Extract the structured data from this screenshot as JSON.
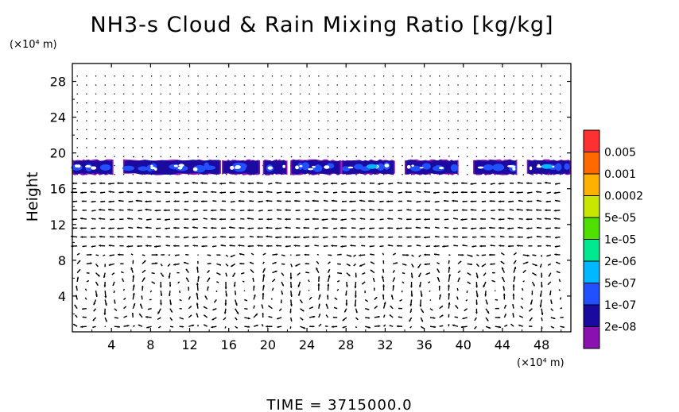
{
  "chart_data": {
    "type": "heatmap",
    "title": "NH3-s Cloud & Rain Mixing Ratio [kg/kg]",
    "ylabel": "Height",
    "x_unit": "(×10⁴ m)",
    "y_unit": "(×10⁴ m)",
    "xlim": [
      0,
      51
    ],
    "ylim": [
      0,
      30
    ],
    "x_ticks": [
      4,
      8,
      12,
      16,
      20,
      24,
      28,
      32,
      36,
      40,
      44,
      48
    ],
    "y_ticks": [
      4,
      8,
      12,
      16,
      20,
      24,
      28
    ],
    "colorbar": {
      "labels": [
        "0.005",
        "0.001",
        "0.0002",
        "5e-05",
        "1e-05",
        "2e-06",
        "5e-07",
        "1e-07",
        "2e-08"
      ],
      "colors": [
        "#ff3030",
        "#ff6a00",
        "#ffb000",
        "#c8e600",
        "#50e000",
        "#00e890",
        "#00b8ff",
        "#2050ff",
        "#1a0aa0",
        "#8a10b0"
      ]
    },
    "cloud_layer": {
      "z_bottom": 17.6,
      "z_top": 19.2,
      "segments": [
        {
          "x": [
            0,
            4.2
          ],
          "peak": "1e-07"
        },
        {
          "x": [
            5.2,
            15.2
          ],
          "peak": "1e-07"
        },
        {
          "x": [
            15.3,
            19.2
          ],
          "peak": "1e-07"
        },
        {
          "x": [
            19.5,
            22.0
          ],
          "peak": "1e-07"
        },
        {
          "x": [
            22.3,
            27.5
          ],
          "peak": "1e-07"
        },
        {
          "x": [
            27.5,
            33.0
          ],
          "peak": "5e-07"
        },
        {
          "x": [
            34.0,
            39.5
          ],
          "peak": "1e-07"
        },
        {
          "x": [
            41.0,
            45.5
          ],
          "peak": "1e-07"
        },
        {
          "x": [
            46.5,
            51.0
          ],
          "peak": "5e-07"
        }
      ]
    },
    "wind_vectors": "flow arrows over grid, calm above ~20, strong circulation cells below ~8"
  },
  "footer": {
    "time_label": "TIME = 3715000.0"
  }
}
